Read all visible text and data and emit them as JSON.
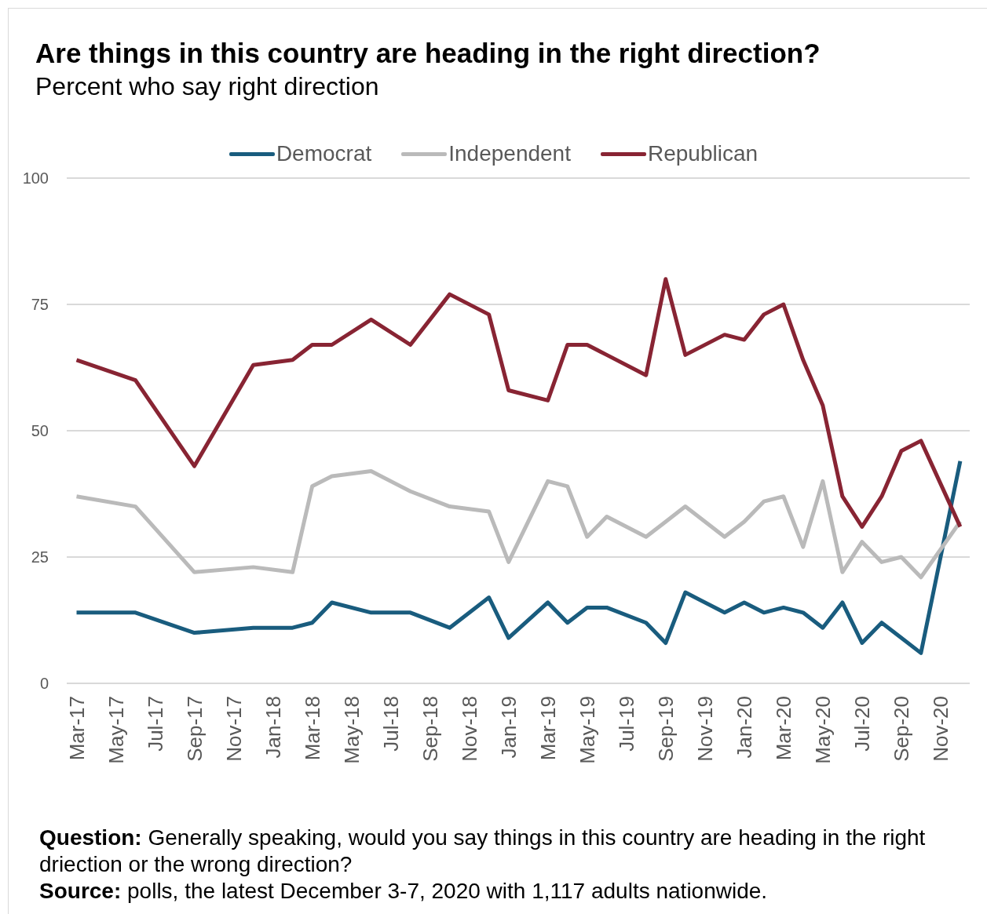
{
  "chart_data": {
    "type": "line",
    "title": "Are things in this country are heading in the right direction?",
    "subtitle": "Percent who say right direction",
    "x": [
      "2017-03",
      "2017-06",
      "2017-09",
      "2017-12",
      "2018-02",
      "2018-03",
      "2018-04",
      "2018-06",
      "2018-08",
      "2018-10",
      "2018-12",
      "2019-01",
      "2019-03",
      "2019-04",
      "2019-05",
      "2019-06",
      "2019-08",
      "2019-09",
      "2019-10",
      "2019-12",
      "2020-01",
      "2020-02",
      "2020-03",
      "2020-04",
      "2020-05",
      "2020-06",
      "2020-07",
      "2020-08",
      "2020-09",
      "2020-10",
      "2020-12"
    ],
    "series": [
      {
        "name": "Democrat",
        "color": "#195c7e",
        "values": [
          14,
          14,
          10,
          11,
          11,
          12,
          16,
          14,
          14,
          11,
          17,
          9,
          16,
          12,
          15,
          15,
          12,
          8,
          18,
          14,
          16,
          14,
          15,
          14,
          11,
          16,
          8,
          12,
          9,
          6,
          44
        ]
      },
      {
        "name": "Independent",
        "color": "#bababa",
        "values": [
          37,
          35,
          22,
          23,
          22,
          39,
          41,
          42,
          38,
          35,
          34,
          24,
          40,
          39,
          29,
          33,
          29,
          32,
          35,
          29,
          32,
          36,
          37,
          27,
          40,
          22,
          28,
          24,
          25,
          21,
          32
        ]
      },
      {
        "name": "Republican",
        "color": "#882433",
        "values": [
          64,
          60,
          43,
          63,
          64,
          67,
          67,
          72,
          67,
          77,
          73,
          58,
          56,
          67,
          67,
          65,
          61,
          80,
          65,
          69,
          68,
          73,
          75,
          64,
          55,
          37,
          31,
          37,
          46,
          48,
          31
        ]
      }
    ],
    "xlim": [
      "2017-02-15",
      "2020-12-16"
    ],
    "xticks": [
      {
        "value": "2017-03",
        "label": "Mar-17"
      },
      {
        "value": "2017-05",
        "label": "May-17"
      },
      {
        "value": "2017-07",
        "label": "Jul-17"
      },
      {
        "value": "2017-09",
        "label": "Sep-17"
      },
      {
        "value": "2017-11",
        "label": "Nov-17"
      },
      {
        "value": "2018-01",
        "label": "Jan-18"
      },
      {
        "value": "2018-03",
        "label": "Mar-18"
      },
      {
        "value": "2018-05",
        "label": "May-18"
      },
      {
        "value": "2018-07",
        "label": "Jul-18"
      },
      {
        "value": "2018-09",
        "label": "Sep-18"
      },
      {
        "value": "2018-11",
        "label": "Nov-18"
      },
      {
        "value": "2019-01",
        "label": "Jan-19"
      },
      {
        "value": "2019-03",
        "label": "Mar-19"
      },
      {
        "value": "2019-05",
        "label": "May-19"
      },
      {
        "value": "2019-07",
        "label": "Jul-19"
      },
      {
        "value": "2019-09",
        "label": "Sep-19"
      },
      {
        "value": "2019-11",
        "label": "Nov-19"
      },
      {
        "value": "2020-01",
        "label": "Jan-20"
      },
      {
        "value": "2020-03",
        "label": "Mar-20"
      },
      {
        "value": "2020-05",
        "label": "May-20"
      },
      {
        "value": "2020-07",
        "label": "Jul-20"
      },
      {
        "value": "2020-09",
        "label": "Sep-20"
      },
      {
        "value": "2020-11",
        "label": "Nov-20"
      }
    ],
    "ylim": [
      0,
      100
    ],
    "yticks": [
      0,
      25,
      50,
      75,
      100
    ],
    "grid": "y",
    "legend": "top",
    "marker": "none",
    "annotations": [
      "Question: Generally speaking, would you say things in this country are heading in the right driection or the wrong direction?",
      "Source: polls, the latest December 3-7, 2020 with 1,117 adults nationwide."
    ]
  }
}
